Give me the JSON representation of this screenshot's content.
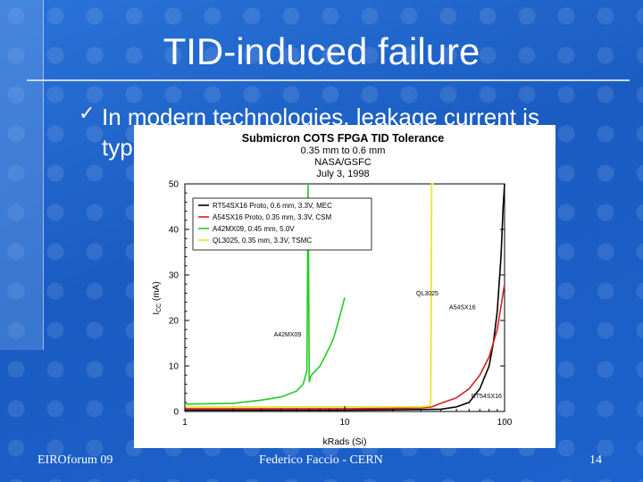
{
  "slide": {
    "title": "TID-induced failure",
    "bullet_mark": "✓",
    "bullet_text": "In modern technologies, leakage current is typically the first",
    "footer_left": "EIROforum 09",
    "footer_center": "Federico Faccio - CERN",
    "page_number": "14"
  },
  "chart_data": {
    "type": "line",
    "title": "Submicron COTS FPGA TID Tolerance",
    "subtitle_lines": [
      "0.35 mm to 0.6 mm",
      "NASA/GSFC",
      "July 3, 1998"
    ],
    "xlabel": "kRads (Si)",
    "ylabel_main": "I",
    "ylabel_sub": "CC",
    "ylabel_unit": " (mA)",
    "x_scale": "log",
    "xlim": [
      1,
      100
    ],
    "ylim": [
      0,
      50
    ],
    "x_ticks": [
      1,
      10,
      100
    ],
    "y_ticks": [
      0,
      10,
      20,
      30,
      40,
      50
    ],
    "legend_position": "top-left",
    "series": [
      {
        "name": "RT54SX16 Proto, 0.6 mm, 3.3V, MEC",
        "color": "#000000",
        "label": "RT54SX16",
        "label_at": [
          62,
          2.9
        ],
        "x": [
          1,
          5,
          10,
          20,
          40,
          50,
          60,
          70,
          80,
          85,
          90,
          95,
          98,
          100
        ],
        "y": [
          0.3,
          0.3,
          0.3,
          0.35,
          0.5,
          1.0,
          2.0,
          5.0,
          10,
          15,
          22,
          34,
          45,
          50
        ]
      },
      {
        "name": "A54SX16 Proto, 0.35 mm, 3.3V, CSM",
        "color": "#d42020",
        "label": "A54SX16",
        "label_at": [
          45,
          22.5
        ],
        "x": [
          1,
          5,
          10,
          20,
          30,
          35,
          40,
          50,
          60,
          70,
          80,
          90,
          100
        ],
        "y": [
          0.6,
          0.6,
          0.6,
          0.7,
          0.8,
          1.0,
          1.8,
          3.0,
          5.0,
          8.0,
          12,
          18,
          28
        ]
      },
      {
        "name": "A42MX09, 0.45 mm, 5.0V",
        "color": "#22cc22",
        "label": "A42MX09",
        "label_at": [
          3.6,
          16.5
        ],
        "x": [
          1,
          2,
          3,
          4,
          5,
          5.5,
          5.8,
          5.9,
          6.0,
          6.1,
          6.2,
          6.4,
          6.6,
          7,
          7.5,
          8,
          8.5,
          9,
          10
        ],
        "y": [
          1.6,
          1.8,
          2.5,
          3.2,
          4.5,
          6.0,
          9.0,
          50,
          6.5,
          7.5,
          8.0,
          8.5,
          9.0,
          10,
          12,
          14,
          16,
          19,
          25
        ]
      },
      {
        "name": "QL3025, 0.35 mm, 3.3V, TSMC",
        "color": "#e8e020",
        "label": "QL3025",
        "label_at": [
          28,
          25.5
        ],
        "x": [
          1,
          10,
          20,
          30,
          34,
          34.5,
          35,
          35.5,
          36
        ],
        "y": [
          1.0,
          1.0,
          1.0,
          1.0,
          1.2,
          2.0,
          50,
          50,
          50
        ]
      }
    ]
  }
}
